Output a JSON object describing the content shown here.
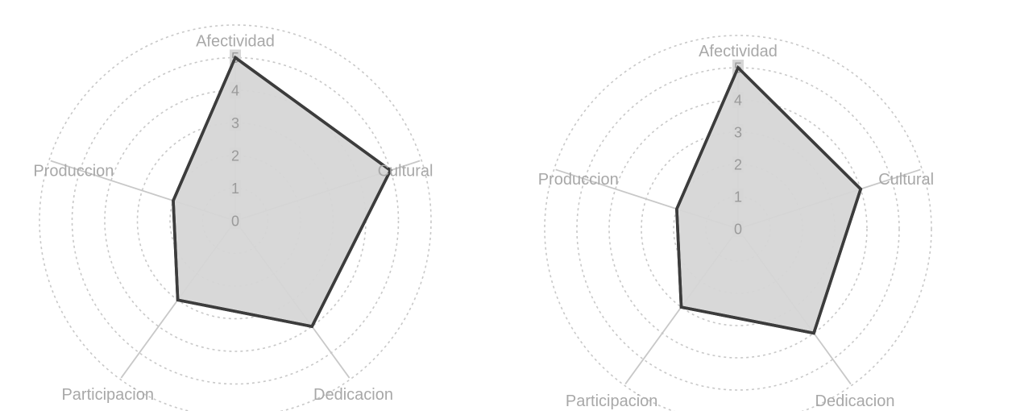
{
  "chart_data": [
    {
      "type": "radar",
      "categories": [
        "Afectividad",
        "Cultural",
        "Dedicacion",
        "Participacion",
        "Produccion"
      ],
      "values": [
        5,
        5,
        4,
        3,
        2
      ],
      "rlim": [
        0,
        5
      ],
      "ticks": [
        "0",
        "1",
        "2",
        "3",
        "4",
        "5"
      ],
      "grid": true,
      "colors": {
        "fill": "#d6d6d6",
        "line": "#3c3c3c",
        "grid": "#c8c8c8",
        "text": "#a8a8a8"
      }
    },
    {
      "type": "radar",
      "categories": [
        "Afectividad",
        "Cultural",
        "Dedicacion",
        "Participacion",
        "Produccion"
      ],
      "values": [
        5,
        4,
        4,
        3,
        2
      ],
      "rlim": [
        0,
        5
      ],
      "ticks": [
        "0",
        "1",
        "2",
        "3",
        "4",
        "5"
      ],
      "grid": true,
      "colors": {
        "fill": "#d6d6d6",
        "line": "#3c3c3c",
        "grid": "#c8c8c8",
        "text": "#a8a8a8"
      }
    }
  ]
}
